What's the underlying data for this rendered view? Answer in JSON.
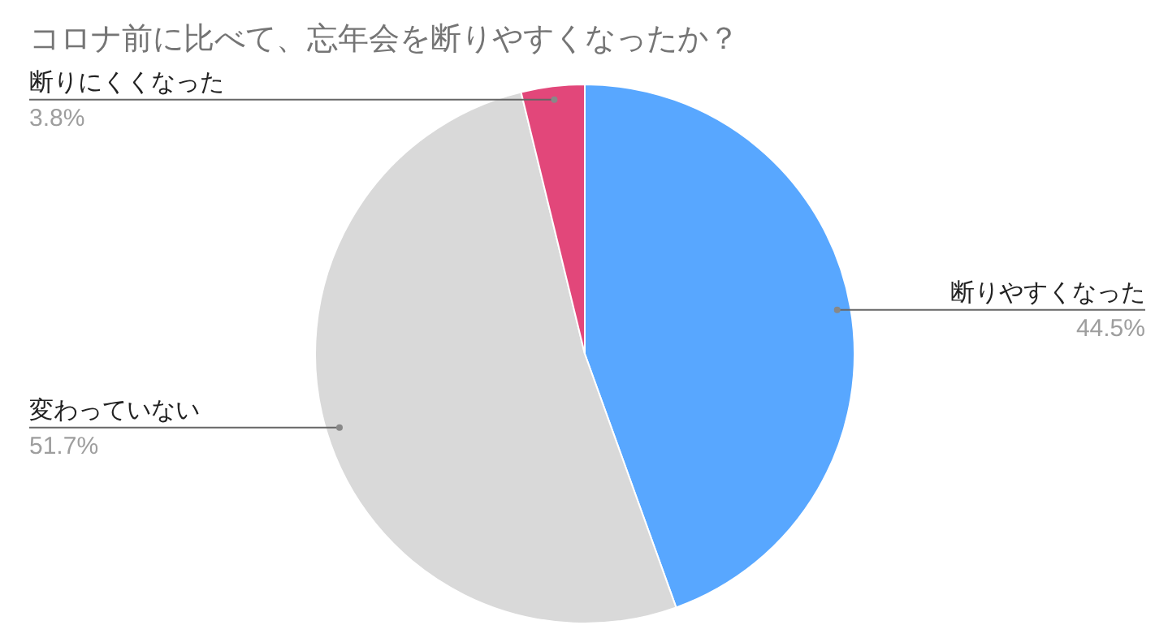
{
  "chart_data": {
    "type": "pie",
    "title": "コロナ前に比べて、忘年会を断りやすくなったか？",
    "categories": [
      "断りやすくなった",
      "変わっていない",
      "断りにくくなった"
    ],
    "values": [
      44.5,
      51.7,
      3.8
    ],
    "value_labels": [
      "44.5%",
      "51.7%",
      "3.8%"
    ],
    "colors": [
      "#58a7ff",
      "#d9d9d9",
      "#e2477a"
    ]
  }
}
